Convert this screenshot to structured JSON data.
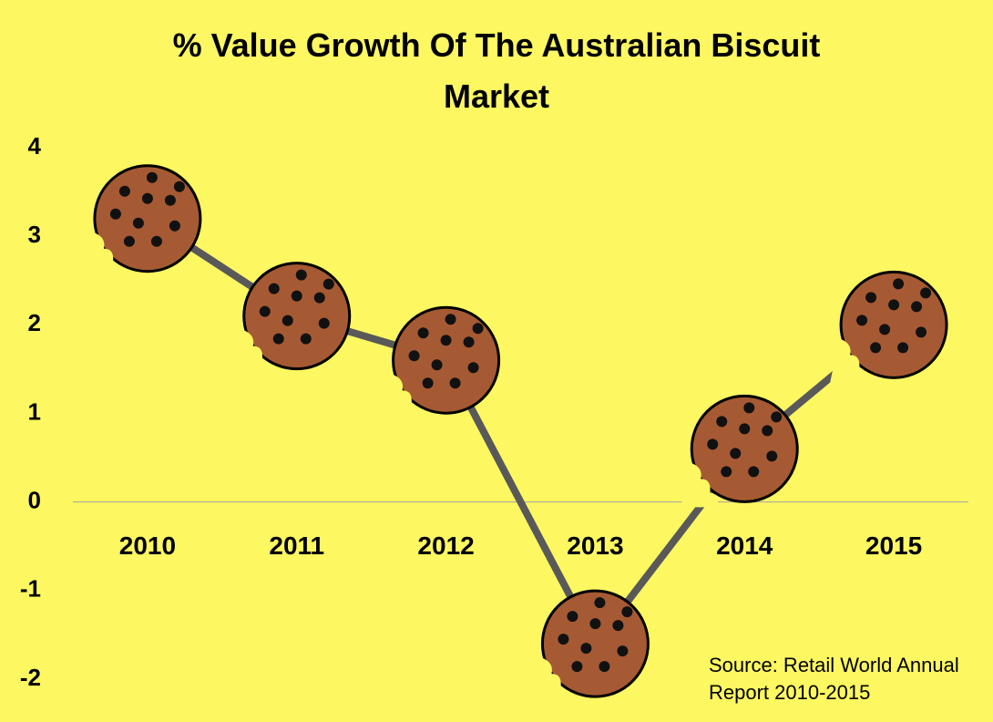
{
  "chart_data": {
    "type": "line",
    "title": "% Value Growth Of The Australian Biscuit Market",
    "annotation": "Source: Retail World Annual Report 2010-2015",
    "categories": [
      "2010",
      "2011",
      "2012",
      "2013",
      "2014",
      "2015"
    ],
    "values": [
      3.2,
      2.1,
      1.6,
      -1.6,
      0.6,
      2.0
    ],
    "color": "#595959",
    "marker_color": "#a65a33",
    "ylim": [
      -2,
      4
    ],
    "yticks": [
      -2,
      -1,
      0,
      1,
      2,
      3,
      4
    ],
    "grid": false
  }
}
